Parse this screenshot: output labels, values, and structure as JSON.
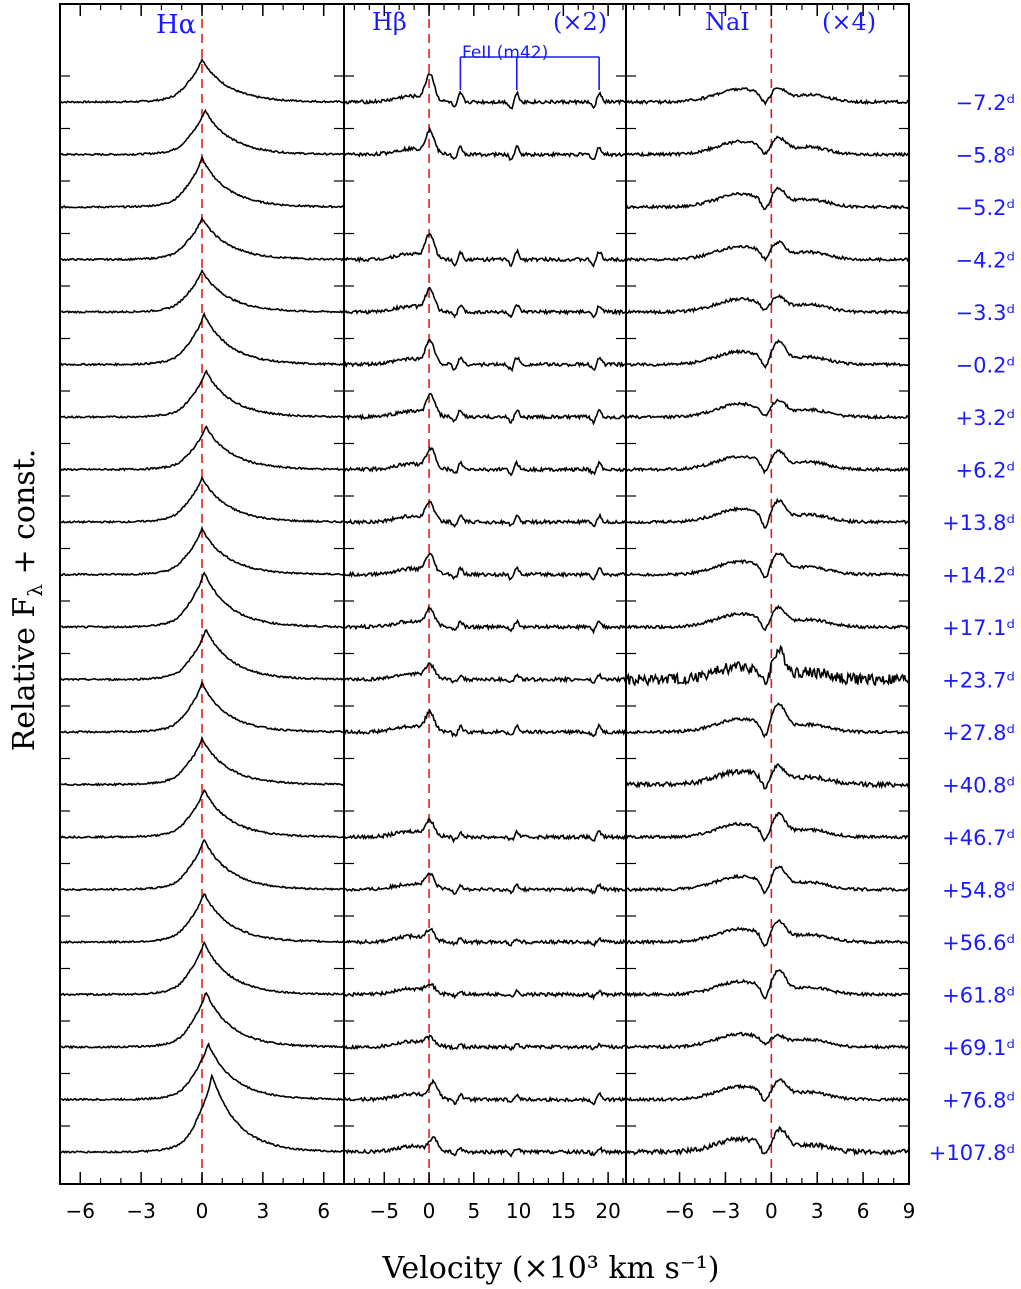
{
  "figure": {
    "ylabel": "Relative Fλ + const.",
    "ylabel_main": "Relative F",
    "ylabel_sub": "λ",
    "ylabel_rest": " + const.",
    "xlabel": "Velocity (×10³ km s⁻¹)",
    "colors": {
      "spectrum": "#000000",
      "label": "#1a1aff",
      "zero_line": "#e0201b",
      "axis": "#000000"
    }
  },
  "epochs": [
    "−7.2ᵈ",
    "−5.8ᵈ",
    "−5.2ᵈ",
    "−4.2ᵈ",
    "−3.3ᵈ",
    "−0.2ᵈ",
    "+3.2ᵈ",
    "+6.2ᵈ",
    "+13.8ᵈ",
    "+14.2ᵈ",
    "+17.1ᵈ",
    "+23.7ᵈ",
    "+27.8ᵈ",
    "+40.8ᵈ",
    "+46.7ᵈ",
    "+54.8ᵈ",
    "+56.6ᵈ",
    "+61.8ᵈ",
    "+69.1ᵈ",
    "+76.8ᵈ",
    "+107.8ᵈ"
  ],
  "chart_data": [
    {
      "type": "line",
      "panel": "Hα",
      "title": "Hα",
      "scale_label": "",
      "xlim": [
        -7,
        7
      ],
      "xticks": [
        -6,
        -3,
        0,
        3,
        6
      ],
      "xticklabels": [
        "−6",
        "−3",
        "0",
        "3",
        "6"
      ],
      "zero_line_x": 0,
      "epochs_present": [
        1,
        1,
        1,
        1,
        1,
        1,
        1,
        1,
        1,
        1,
        1,
        1,
        1,
        1,
        1,
        1,
        1,
        1,
        1,
        1,
        1
      ],
      "profile": {
        "peak_height": [
          1.45,
          1.5,
          1.65,
          1.4,
          1.4,
          1.7,
          1.55,
          1.45,
          1.5,
          1.55,
          1.85,
          1.7,
          1.65,
          1.55,
          1.6,
          1.7,
          1.65,
          1.75,
          1.85,
          1.9,
          2.6
        ],
        "peak_x": [
          0.0,
          0.15,
          0.0,
          0.0,
          0.0,
          0.1,
          0.2,
          0.2,
          0.0,
          0.0,
          0.1,
          0.2,
          0.0,
          0.0,
          0.1,
          0.1,
          0.1,
          0.1,
          0.2,
          0.3,
          0.5
        ]
      }
    },
    {
      "type": "line",
      "panel": "Hβ",
      "title": "Hβ",
      "scale_label": "(×2)",
      "xlim": [
        -9.5,
        22
      ],
      "xticks": [
        -5,
        0,
        5,
        10,
        15,
        20
      ],
      "xticklabels": [
        "−5",
        "0",
        "5",
        "10",
        "15",
        "20"
      ],
      "zero_line_x": 0,
      "annotation": {
        "text": "FeII (m42)",
        "lines_x": [
          3.5,
          9.8,
          19.0
        ]
      },
      "epochs_present": [
        1,
        1,
        0,
        1,
        1,
        1,
        1,
        1,
        1,
        1,
        1,
        1,
        1,
        0,
        1,
        1,
        1,
        1,
        1,
        1,
        1
      ],
      "profile": {
        "peak_height": [
          0.9,
          0.75,
          0,
          0.8,
          0.7,
          0.75,
          0.7,
          0.65,
          0.6,
          0.6,
          0.55,
          0.45,
          0.6,
          0,
          0.5,
          0.45,
          0.35,
          0.3,
          0.25,
          0.55,
          0.4
        ],
        "peak_x": [
          0.1,
          0.1,
          0,
          0.1,
          0.1,
          0.1,
          0.2,
          0.2,
          0.1,
          0.1,
          0.1,
          0.1,
          0.1,
          0,
          0.1,
          0.1,
          0.1,
          0.1,
          0.1,
          0.5,
          0.5
        ]
      }
    },
    {
      "type": "line",
      "panel": "NaI",
      "title": "NaI",
      "scale_label": "(×4)",
      "xlim": [
        -9.5,
        9
      ],
      "xticks": [
        -6,
        -3,
        0,
        3,
        6,
        9
      ],
      "xticklabels": [
        "−6",
        "−3",
        "0",
        "3",
        "6",
        "9"
      ],
      "zero_line_x": 0,
      "epochs_present": [
        1,
        1,
        1,
        1,
        1,
        1,
        1,
        1,
        1,
        1,
        1,
        1,
        1,
        1,
        1,
        1,
        1,
        1,
        1,
        1,
        1
      ],
      "profile": {
        "peak_height": [
          0.3,
          0.4,
          0.45,
          0.4,
          0.35,
          0.6,
          0.4,
          0.45,
          0.55,
          0.55,
          0.5,
          0.8,
          0.8,
          0.45,
          0.6,
          0.6,
          0.55,
          0.65,
          0.2,
          0.5,
          0.6
        ],
        "peak_x": [
          0.5,
          0.5,
          0.5,
          0.5,
          0.5,
          0.5,
          0.5,
          0.5,
          0.5,
          0.5,
          0.5,
          0.5,
          0.5,
          0.5,
          0.5,
          0.5,
          0.5,
          0.5,
          0.5,
          0.6,
          0.6
        ],
        "absorption_depth": [
          0.35,
          0.3,
          0.4,
          0.3,
          0.25,
          0.4,
          0.3,
          0.4,
          0.5,
          0.45,
          0.4,
          0.5,
          0.5,
          0.4,
          0.45,
          0.45,
          0.45,
          0.45,
          0.2,
          0.35,
          0.4
        ]
      }
    }
  ]
}
